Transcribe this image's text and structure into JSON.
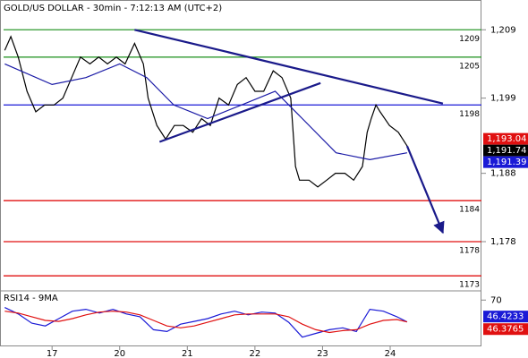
{
  "chart_data": [
    {
      "type": "line",
      "title": "GOLD/US DOLLAR - 30min - 7:12:13 AM (UTC+2)",
      "x": [
        -0.7,
        -0.61,
        -0.5,
        -0.37,
        -0.24,
        -0.11,
        0.03,
        0.16,
        0.29,
        0.42,
        0.56,
        0.69,
        0.82,
        0.95,
        1.08,
        1.22,
        1.35,
        1.42,
        1.55,
        1.68,
        1.81,
        1.94,
        2.08,
        2.21,
        2.34,
        2.47,
        2.61,
        2.74,
        2.87,
        3.0,
        3.13,
        3.27,
        3.4,
        3.53,
        3.6,
        3.66,
        3.8,
        3.93,
        4.06,
        4.19,
        4.33,
        4.46,
        4.59,
        4.66,
        4.72,
        4.79,
        4.85,
        4.99,
        5.12,
        5.25
      ],
      "xlim": [
        -0.77,
        6.35
      ],
      "ylim": [
        1170.8,
        1212.7
      ],
      "yticks": [
        {
          "value": 1209,
          "label": "1,209"
        },
        {
          "value": 1199,
          "label": "1,199"
        },
        {
          "value": 1188,
          "label": "1,188"
        },
        {
          "value": 1178,
          "label": "1,178"
        }
      ],
      "series": [
        {
          "color": "#000000",
          "values": [
            1206,
            1208,
            1205,
            1200,
            1197,
            1198,
            1198,
            1199,
            1202,
            1205,
            1204,
            1205,
            1204,
            1205,
            1204,
            1207,
            1204,
            1199,
            1195,
            1193,
            1195,
            1195,
            1194,
            1196,
            1195,
            1199,
            1198,
            1201,
            1202,
            1200,
            1200,
            1203,
            1202,
            1199,
            1189,
            1187,
            1187,
            1186,
            1187,
            1188,
            1188,
            1187,
            1189,
            1194,
            1196,
            1198,
            1197,
            1195,
            1194,
            1192
          ]
        },
        {
          "color": "#1a1aa6",
          "x": [
            -0.7,
            0,
            0.5,
            1,
            1.4,
            1.8,
            2.3,
            2.8,
            3.3,
            3.7,
            4.2,
            4.7,
            5.25
          ],
          "values": [
            1204,
            1201,
            1202,
            1204,
            1202,
            1198,
            1196,
            1198,
            1200,
            1196,
            1191,
            1190,
            1191
          ]
        }
      ],
      "levels": [
        {
          "value": 1209,
          "color": "#2e9a2e"
        },
        {
          "value": 1205,
          "color": "#2e9a2e"
        },
        {
          "value": 1198,
          "color": "#1a1ad6"
        },
        {
          "value": 1184,
          "color": "#e01010"
        },
        {
          "value": 1178,
          "color": "#e01010"
        },
        {
          "value": 1173,
          "color": "#e01010"
        }
      ],
      "trendlines": [
        {
          "x": [
            1.22,
            5.78
          ],
          "y": [
            1209,
            1198.2
          ],
          "color": "#1a1a8a"
        },
        {
          "x": [
            1.59,
            3.97
          ],
          "y": [
            1192.6,
            1201.2
          ],
          "color": "#1a1a8a"
        },
        {
          "x": [
            5.25,
            5.78
          ],
          "y": [
            1192,
            1179.3
          ],
          "color": "#1a1a8a",
          "arrow": true
        }
      ],
      "price_labels": [
        {
          "value": 1193.04,
          "label": "1,193.04",
          "color": "#e01010"
        },
        {
          "value": 1191.74,
          "label": "1,191.74",
          "color": "#000000"
        },
        {
          "value": 1191.39,
          "label": "1,191.39",
          "color": "#1a1ad6"
        }
      ]
    },
    {
      "type": "line",
      "title": "RSI14 - 9MA",
      "x": [
        -0.7,
        -0.5,
        -0.3,
        -0.1,
        0.1,
        0.3,
        0.5,
        0.7,
        0.9,
        1.1,
        1.3,
        1.5,
        1.7,
        1.9,
        2.1,
        2.3,
        2.5,
        2.7,
        2.9,
        3.1,
        3.3,
        3.5,
        3.7,
        3.9,
        4.1,
        4.3,
        4.5,
        4.7,
        4.9,
        5.1,
        5.25
      ],
      "xlim": [
        -0.77,
        6.35
      ],
      "ylim": [
        20,
        78
      ],
      "xticks": [
        {
          "value": 0,
          "label": "17"
        },
        {
          "value": 1,
          "label": "20"
        },
        {
          "value": 2,
          "label": "21"
        },
        {
          "value": 3,
          "label": "22"
        },
        {
          "value": 4,
          "label": "23"
        },
        {
          "value": 5,
          "label": "24"
        }
      ],
      "yticks": [
        70
      ],
      "series": [
        {
          "color": "#1a1ad6",
          "values": [
            62,
            55,
            45,
            42,
            50,
            58,
            60,
            56,
            60,
            55,
            52,
            38,
            36,
            44,
            47,
            50,
            55,
            58,
            54,
            57,
            56,
            46,
            30,
            34,
            38,
            40,
            36,
            60,
            58,
            52,
            46.4233
          ]
        },
        {
          "color": "#e01010",
          "values": [
            58,
            56,
            52,
            48,
            47,
            50,
            54,
            57,
            58,
            57,
            54,
            48,
            42,
            40,
            42,
            46,
            50,
            54,
            55,
            55,
            55,
            52,
            44,
            38,
            35,
            37,
            38,
            44,
            48,
            49,
            46.3765
          ]
        }
      ]
    }
  ]
}
